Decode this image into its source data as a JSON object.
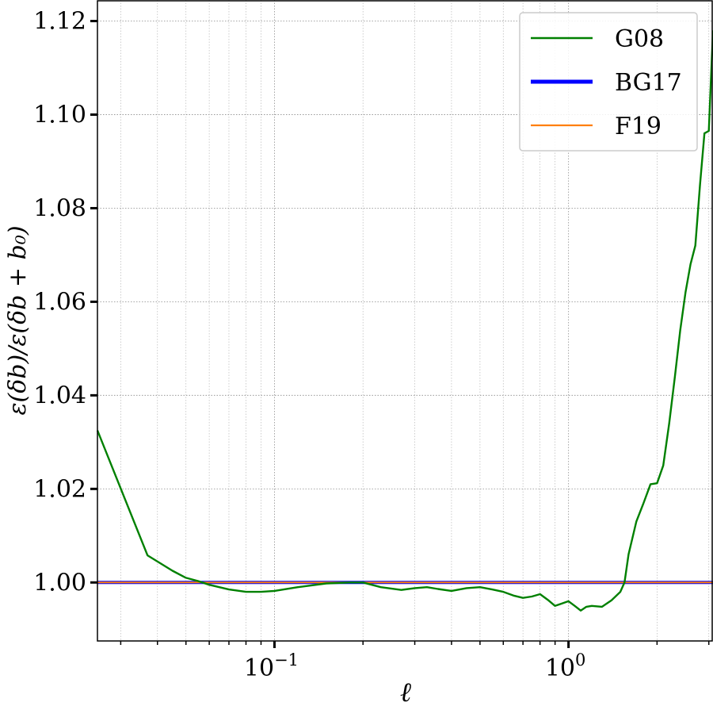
{
  "chart_data": {
    "type": "line",
    "xscale": "log",
    "xlim": [
      0.025,
      3.1
    ],
    "ylim": [
      0.9875,
      1.1245
    ],
    "grid": "on (major and minor, dotted)",
    "xlabel": "ℓ",
    "ylabel": "ε(δb)/ε(δb + b₀)",
    "x_ticks": [
      {
        "value": 0.1,
        "base": "10",
        "exp": "−1"
      },
      {
        "value": 1.0,
        "base": "10",
        "exp": "0"
      }
    ],
    "y_ticks": [
      {
        "value": 1.0,
        "label": "1.00"
      },
      {
        "value": 1.02,
        "label": "1.02"
      },
      {
        "value": 1.04,
        "label": "1.04"
      },
      {
        "value": 1.06,
        "label": "1.06"
      },
      {
        "value": 1.08,
        "label": "1.08"
      },
      {
        "value": 1.1,
        "label": "1.10"
      },
      {
        "value": 1.12,
        "label": "1.12"
      }
    ],
    "legend_position": "top-right",
    "series": [
      {
        "name": "G08",
        "color": "#008000",
        "x": [
          0.025,
          0.037,
          0.045,
          0.05,
          0.055,
          0.06,
          0.07,
          0.08,
          0.09,
          0.1,
          0.12,
          0.15,
          0.18,
          0.2,
          0.23,
          0.27,
          0.3,
          0.33,
          0.36,
          0.4,
          0.45,
          0.5,
          0.55,
          0.6,
          0.65,
          0.7,
          0.75,
          0.8,
          0.85,
          0.9,
          0.95,
          1.0,
          1.05,
          1.1,
          1.15,
          1.2,
          1.3,
          1.4,
          1.5,
          1.55,
          1.6,
          1.7,
          1.8,
          1.9,
          2.0,
          2.1,
          2.2,
          2.3,
          2.4,
          2.5,
          2.6,
          2.7,
          2.8,
          2.9,
          3.0,
          3.1
        ],
        "y": [
          1.0325,
          1.0058,
          1.0025,
          1.001,
          1.0003,
          0.9995,
          0.9985,
          0.998,
          0.998,
          0.9982,
          0.999,
          0.9998,
          1.0,
          1.0,
          0.999,
          0.9984,
          0.9988,
          0.999,
          0.9986,
          0.9982,
          0.9988,
          0.999,
          0.9985,
          0.998,
          0.9972,
          0.9967,
          0.997,
          0.9975,
          0.9963,
          0.995,
          0.9955,
          0.996,
          0.995,
          0.994,
          0.9948,
          0.995,
          0.9948,
          0.9962,
          0.998,
          1.0,
          1.006,
          1.013,
          1.017,
          1.021,
          1.0212,
          1.025,
          1.034,
          1.044,
          1.054,
          1.062,
          1.068,
          1.072,
          1.085,
          1.096,
          1.0965,
          1.118
        ]
      },
      {
        "name": "BG17",
        "color": "#0000ff",
        "x": [
          0.025,
          3.1
        ],
        "y": [
          1.0,
          1.0
        ]
      },
      {
        "name": "F19",
        "color": "#ff7f0e",
        "x": [
          0.025,
          3.1
        ],
        "y": [
          1.0,
          1.0
        ]
      }
    ]
  }
}
